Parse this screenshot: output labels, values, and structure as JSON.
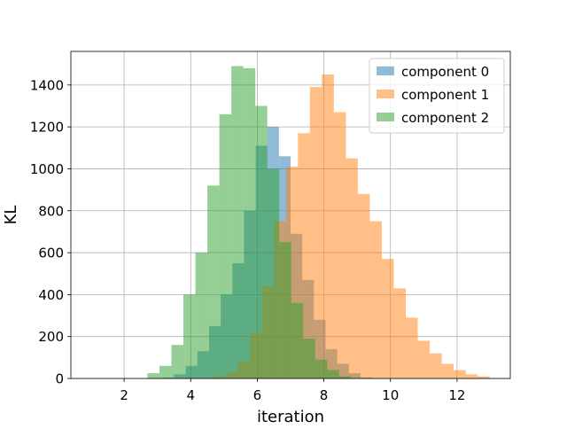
{
  "chart_data": {
    "type": "bar",
    "title": "",
    "xlabel": "iteration",
    "ylabel": "KL",
    "xlim": [
      0.4,
      13.6
    ],
    "ylim": [
      0,
      1560
    ],
    "xticks": [
      2,
      4,
      6,
      8,
      10,
      12
    ],
    "yticks": [
      0,
      200,
      400,
      600,
      800,
      1000,
      1200,
      1400
    ],
    "grid": true,
    "legend": {
      "placement": "top-right"
    },
    "series": [
      {
        "name": "component 0",
        "color": "#1f77b4",
        "opacity": 0.5,
        "bin_width": 0.35,
        "bin_starts": [
          3.15,
          3.5,
          3.85,
          4.2,
          4.55,
          4.9,
          5.25,
          5.6,
          5.95,
          6.3,
          6.65,
          7.0,
          7.35,
          7.7,
          8.05,
          8.4,
          8.75,
          9.1
        ],
        "counts": [
          5,
          20,
          60,
          130,
          250,
          400,
          550,
          800,
          1110,
          1200,
          1060,
          690,
          470,
          280,
          140,
          70,
          25,
          5
        ]
      },
      {
        "name": "component 1",
        "color": "#ff7f0e",
        "opacity": 0.5,
        "bin_width": 0.36,
        "bin_starts": [
          4.7,
          5.06,
          5.42,
          5.78,
          6.14,
          6.5,
          6.86,
          7.22,
          7.58,
          7.94,
          8.3,
          8.66,
          9.02,
          9.38,
          9.74,
          10.1,
          10.46,
          10.82,
          11.18,
          11.54,
          11.9,
          12.26,
          12.62
        ],
        "counts": [
          10,
          30,
          80,
          220,
          440,
          750,
          1010,
          1170,
          1390,
          1450,
          1270,
          1050,
          880,
          750,
          570,
          430,
          290,
          180,
          120,
          70,
          40,
          20,
          10
        ]
      },
      {
        "name": "component 2",
        "color": "#2ca02c",
        "opacity": 0.5,
        "bin_width": 0.36,
        "bin_starts": [
          2.7,
          3.06,
          3.42,
          3.78,
          4.14,
          4.5,
          4.86,
          5.22,
          5.58,
          5.94,
          6.3,
          6.66,
          7.02,
          7.38,
          7.74,
          8.1,
          8.46
        ],
        "counts": [
          25,
          60,
          160,
          400,
          600,
          920,
          1260,
          1490,
          1480,
          1300,
          1000,
          650,
          360,
          190,
          90,
          40,
          10
        ]
      }
    ]
  }
}
